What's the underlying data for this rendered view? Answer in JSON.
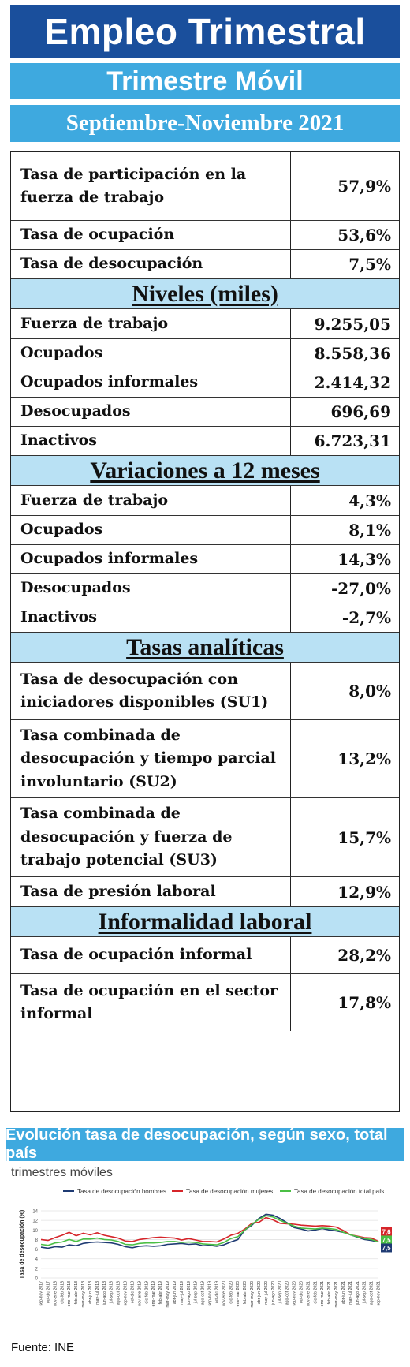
{
  "header": {
    "title": "Empleo Trimestral",
    "subtitle": "Trimestre Móvil",
    "period": "Septiembre-Noviembre 2021"
  },
  "rows_top": [
    {
      "label": "Tasa de participación en la fuerza de trabajo",
      "value": "57,9%"
    },
    {
      "label": "Tasa de ocupación",
      "value": "53,6%"
    },
    {
      "label": "Tasa de desocupación",
      "value": "7,5%"
    }
  ],
  "niveles": {
    "title": "Niveles (miles)",
    "rows": [
      {
        "label": "Fuerza de trabajo",
        "value": "9.255,05"
      },
      {
        "label": "Ocupados",
        "value": "8.558,36"
      },
      {
        "label": "Ocupados informales",
        "value": "2.414,32"
      },
      {
        "label": "Desocupados",
        "value": "696,69"
      },
      {
        "label": "Inactivos",
        "value": "6.723,31"
      }
    ]
  },
  "variaciones": {
    "title": "Variaciones a 12 meses",
    "rows": [
      {
        "label": "Fuerza de trabajo",
        "value": "4,3%"
      },
      {
        "label": "Ocupados",
        "value": "8,1%"
      },
      {
        "label": "Ocupados informales",
        "value": "14,3%"
      },
      {
        "label": "Desocupados",
        "value": "-27,0%"
      },
      {
        "label": "Inactivos",
        "value": "-2,7%"
      }
    ]
  },
  "tasas": {
    "title": "Tasas analíticas",
    "rows": [
      {
        "label": "Tasa de desocupación con iniciadores disponibles (SU1)",
        "value": "8,0%"
      },
      {
        "label": "Tasa combinada de desocupación y tiempo parcial involuntario (SU2)",
        "value": "13,2%"
      },
      {
        "label": "Tasa combinada de desocupación y fuerza de trabajo potencial (SU3)",
        "value": "15,7%"
      },
      {
        "label": "Tasa de presión laboral",
        "value": "12,9%"
      }
    ]
  },
  "informalidad": {
    "title": "Informalidad laboral",
    "rows": [
      {
        "label": "Tasa de ocupación informal",
        "value": "28,2%"
      },
      {
        "label": "Tasa de ocupación en el sector informal",
        "value": "17,8%"
      }
    ]
  },
  "chart_header": "Evolución tasa de desocupación, según sexo, total país",
  "chart_subtitle": "trimestres móviles",
  "source": "Fuente: INE",
  "chart_data": {
    "type": "line",
    "ylabel": "Tasa de desocupación (%)",
    "ylim": [
      0,
      14
    ],
    "yticks": [
      0,
      2,
      4,
      6,
      8,
      10,
      12,
      14
    ],
    "legend_position": "top",
    "x": [
      "sep-nov 2017",
      "oct-dic 2017",
      "nov-ene 2018",
      "dic-feb 2018",
      "ene-mar 2018",
      "feb-abr 2018",
      "mar-may 2018",
      "abr-jun 2018",
      "may-jul 2018",
      "jun-ago 2018",
      "jul-sep 2018",
      "ago-oct 2018",
      "sep-nov 2018",
      "oct-dic 2018",
      "nov-ene 2019",
      "dic-feb 2019",
      "ene-mar 2019",
      "feb-abr 2019",
      "mar-may 2019",
      "abr-jun 2019",
      "may-jul 2019",
      "jun-ago 2019",
      "jul-sep 2019",
      "ago-oct 2019",
      "sep-nov 2019",
      "oct-dic 2019",
      "nov-ene 2020",
      "dic-feb 2020",
      "ene-mar 2020",
      "feb-abr 2020",
      "mar-may 2020",
      "abr-jun 2020",
      "may-jul 2020",
      "jun-ago 2020",
      "jul-sep 2020",
      "ago-oct 2020",
      "sep-nov 2020",
      "oct-dic 2020",
      "nov-ene 2021",
      "dic-feb 2021",
      "ene-mar 2021",
      "feb-abr 2021",
      "mar-may 2021",
      "abr-jun 2021",
      "may-jul 2021",
      "jun-ago 2021",
      "jul-sep 2021",
      "ago-oct 2021",
      "sep-nov 2021"
    ],
    "series": [
      {
        "name": "Tasa de desocupación hombres",
        "color": "#1f3b73",
        "values": [
          6.4,
          6.2,
          6.5,
          6.4,
          6.9,
          6.7,
          7.2,
          7.4,
          7.5,
          7.4,
          7.3,
          7.0,
          6.5,
          6.3,
          6.6,
          6.7,
          6.6,
          6.7,
          7.0,
          7.1,
          7.2,
          7.0,
          7.1,
          6.7,
          6.8,
          6.6,
          6.9,
          7.5,
          8.0,
          10.0,
          11.0,
          12.4,
          13.3,
          13.1,
          12.4,
          11.5,
          10.5,
          10.2,
          9.8,
          10.0,
          10.3,
          10.0,
          9.8,
          9.5,
          9.0,
          8.5,
          8.0,
          7.8,
          7.5
        ]
      },
      {
        "name": "Tasa de desocupación mujeres",
        "color": "#d6252a",
        "values": [
          8.0,
          7.8,
          8.4,
          8.9,
          9.5,
          8.8,
          9.3,
          9.0,
          9.4,
          8.9,
          8.6,
          8.3,
          7.7,
          7.6,
          8.0,
          8.2,
          8.4,
          8.5,
          8.4,
          8.3,
          7.9,
          8.2,
          7.9,
          7.6,
          7.6,
          7.5,
          8.1,
          8.9,
          9.3,
          10.2,
          11.4,
          11.6,
          12.6,
          12.1,
          11.4,
          11.3,
          11.2,
          11.0,
          10.9,
          10.8,
          10.9,
          10.8,
          10.6,
          9.9,
          9.0,
          8.7,
          8.4,
          8.3,
          7.6
        ]
      },
      {
        "name": "Tasa de desocupación total país",
        "color": "#4bbf45",
        "values": [
          7.0,
          6.8,
          7.3,
          7.5,
          8.0,
          7.6,
          8.1,
          8.1,
          8.3,
          8.0,
          7.9,
          7.6,
          7.0,
          6.9,
          7.2,
          7.3,
          7.3,
          7.4,
          7.6,
          7.6,
          7.4,
          7.5,
          7.4,
          7.1,
          7.0,
          6.9,
          7.4,
          8.2,
          8.6,
          10.0,
          11.2,
          12.2,
          13.0,
          12.7,
          12.0,
          11.4,
          10.8,
          10.4,
          10.3,
          10.2,
          10.4,
          10.3,
          10.1,
          9.5,
          9.0,
          8.6,
          8.2,
          8.0,
          7.5
        ]
      }
    ],
    "end_labels": [
      "7,6",
      "7,5",
      "7,5"
    ]
  }
}
